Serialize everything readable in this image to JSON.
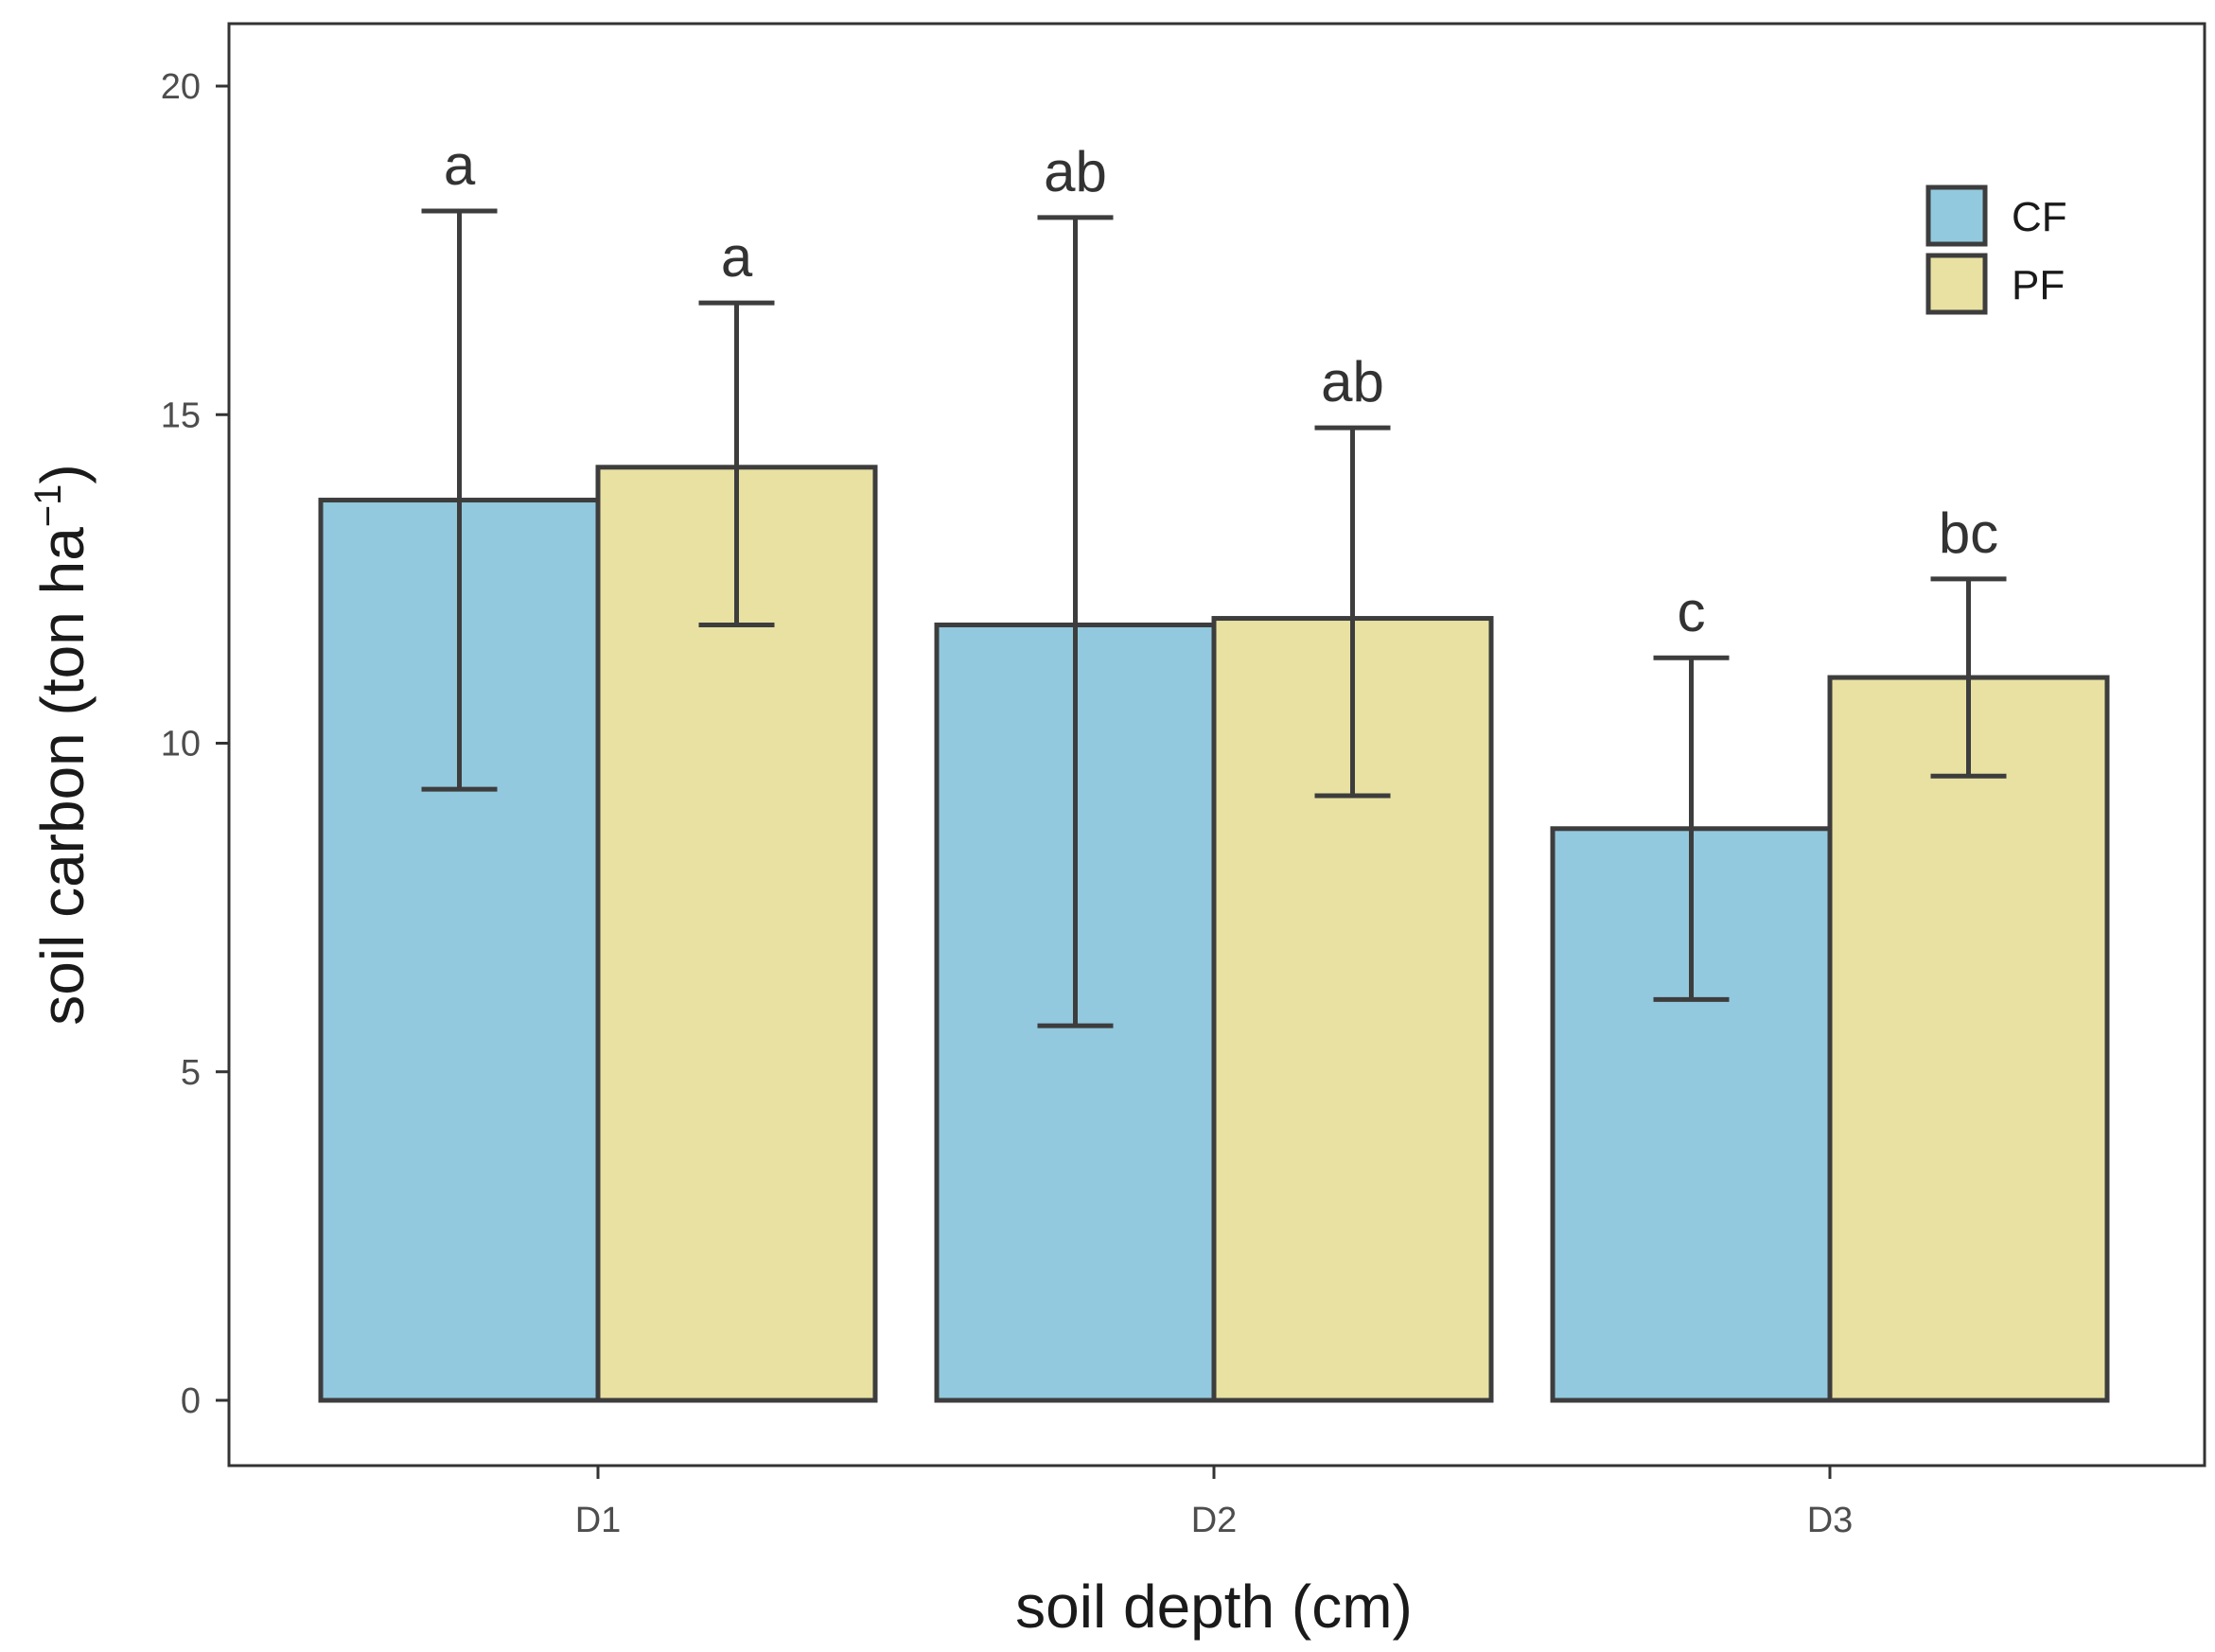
{
  "chart_data": {
    "type": "bar",
    "title": "",
    "xlabel": "soil depth (cm)",
    "ylabel": {
      "main": "soil carbon (ton ha",
      "superscript": "−1",
      "close": ")"
    },
    "ylim": [
      0,
      20
    ],
    "yticks": [
      "0",
      "5",
      "10",
      "15",
      "20"
    ],
    "grid": false,
    "legend_position": "top-right",
    "categories": [
      "D1",
      "D2",
      "D3"
    ],
    "series": [
      {
        "name": "CF",
        "color": "#92c9de",
        "values": [
          13.7,
          11.8,
          8.7
        ],
        "error_low": [
          9.3,
          5.7,
          6.1
        ],
        "error_high": [
          18.1,
          18.0,
          11.3
        ],
        "labels": [
          "a",
          "ab",
          "c"
        ]
      },
      {
        "name": "PF",
        "color": "#e8e1a2",
        "values": [
          14.2,
          11.9,
          11.0
        ],
        "error_low": [
          11.8,
          9.2,
          9.5
        ],
        "error_high": [
          16.7,
          14.8,
          12.5
        ],
        "labels": [
          "a",
          "ab",
          "bc"
        ]
      }
    ]
  }
}
